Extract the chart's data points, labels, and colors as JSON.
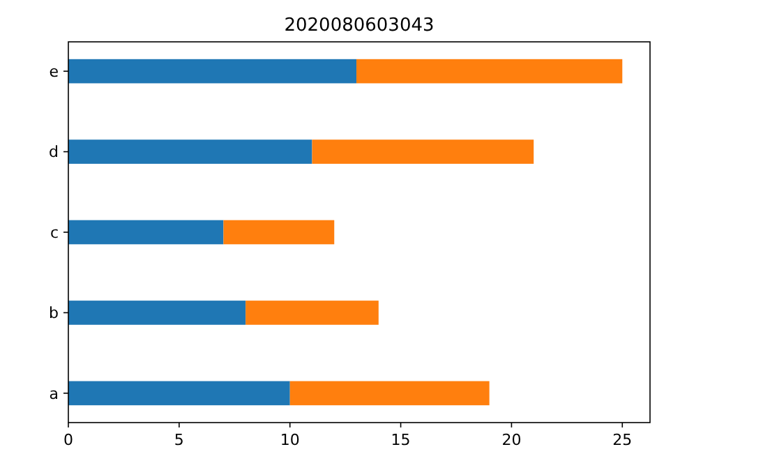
{
  "chart_data": {
    "type": "bar",
    "title": "2020080603043",
    "orientation": "horizontal",
    "stacked": true,
    "categories": [
      "e",
      "d",
      "c",
      "b",
      "a"
    ],
    "series": [
      {
        "color": "#1f77b4",
        "values": [
          13,
          11,
          7,
          8,
          10
        ]
      },
      {
        "color": "#ff7f0e",
        "values": [
          12,
          10,
          5,
          6,
          9
        ]
      }
    ],
    "xlim": [
      0,
      26.25
    ],
    "xticks": [
      0,
      5,
      10,
      15,
      20,
      25
    ],
    "grid": false
  }
}
